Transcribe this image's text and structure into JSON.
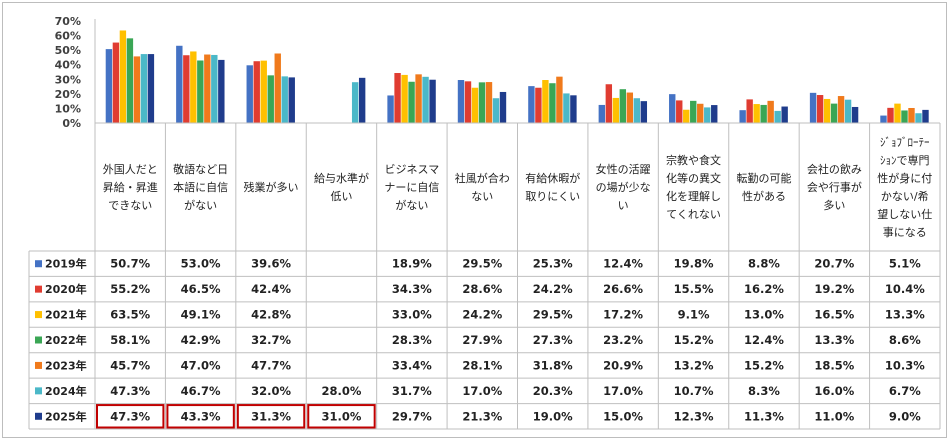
{
  "chart_data": {
    "type": "bar",
    "ylim": [
      0,
      70
    ],
    "y_ticks": [
      "0%",
      "10%",
      "20%",
      "30%",
      "40%",
      "50%",
      "60%",
      "70%"
    ],
    "grid": false,
    "legend": "table-left",
    "categories": [
      "外国人だと|昇給・昇進|できない",
      "敬語など日|本語に自信|がない",
      "残業が多い",
      "給与水準が|低い",
      "ビジネスマ|ナーに自信|がない",
      "社風が合わ|ない",
      "有給休暇が|取りにくい",
      "女性の活躍|の場が少な|い",
      "宗教や食文|化等の異文|化を理解し|てくれない",
      "転勤の可能|性がある",
      "会社の飲み|会や行事が|多い",
      "ｼﾞｮﾌﾞﾛｰﾃｰ|ｼｮﾝで専門|性が身に付|かない/希|望しない仕|事になる"
    ],
    "series": [
      {
        "name": "2019年",
        "color": "#4472C4",
        "values": [
          50.7,
          53.0,
          39.6,
          null,
          18.9,
          29.5,
          25.3,
          12.4,
          19.8,
          8.8,
          20.7,
          5.1
        ]
      },
      {
        "name": "2020年",
        "color": "#E03C31",
        "values": [
          55.2,
          46.5,
          42.4,
          null,
          34.3,
          28.6,
          24.2,
          26.6,
          15.5,
          16.2,
          19.2,
          10.4
        ]
      },
      {
        "name": "2021年",
        "color": "#FFC000",
        "values": [
          63.5,
          49.1,
          42.8,
          null,
          33.0,
          24.2,
          29.5,
          17.2,
          9.1,
          13.0,
          16.5,
          13.3
        ]
      },
      {
        "name": "2022年",
        "color": "#3AA655",
        "values": [
          58.1,
          42.9,
          32.7,
          null,
          28.3,
          27.9,
          27.3,
          23.2,
          15.2,
          12.4,
          13.3,
          8.6
        ]
      },
      {
        "name": "2023年",
        "color": "#F07A1C",
        "values": [
          45.7,
          47.0,
          47.7,
          null,
          33.4,
          28.1,
          31.8,
          20.9,
          13.2,
          15.2,
          18.5,
          10.3
        ]
      },
      {
        "name": "2024年",
        "color": "#4BB8C8",
        "values": [
          47.3,
          46.7,
          32.0,
          28.0,
          31.7,
          17.0,
          20.3,
          17.0,
          10.7,
          8.3,
          16.0,
          6.7
        ]
      },
      {
        "name": "2025年",
        "color": "#1F3C8C",
        "values": [
          47.3,
          43.3,
          31.3,
          31.0,
          29.7,
          21.3,
          19.0,
          15.0,
          12.3,
          11.3,
          11.0,
          9.0
        ]
      }
    ],
    "highlight": {
      "series": "2025年",
      "category_indices": [
        0,
        1,
        2,
        3
      ],
      "color": "#C00000"
    }
  }
}
